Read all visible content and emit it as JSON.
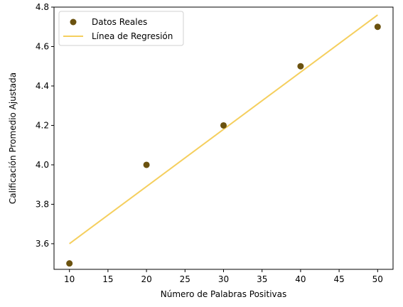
{
  "chart_data": {
    "type": "scatter",
    "title": "",
    "xlabel": "Número de Palabras Positivas",
    "ylabel": "Calificación Promedio Ajustada",
    "xlim": [
      8,
      52
    ],
    "ylim": [
      3.47,
      4.8
    ],
    "x_ticks": [
      10,
      15,
      20,
      25,
      30,
      35,
      40,
      45,
      50
    ],
    "x_tick_labels": [
      "10",
      "15",
      "20",
      "25",
      "30",
      "35",
      "40",
      "45",
      "50"
    ],
    "y_ticks": [
      3.6,
      3.8,
      4.0,
      4.2,
      4.4,
      4.6,
      4.8
    ],
    "y_tick_labels": [
      "3.6",
      "3.8",
      "4.0",
      "4.2",
      "4.4",
      "4.6",
      "4.8"
    ],
    "grid": false,
    "legend_position": "top-left",
    "series": [
      {
        "name": "Datos Reales",
        "kind": "scatter",
        "color": "#6b520f",
        "x": [
          10,
          20,
          30,
          40,
          50
        ],
        "y": [
          3.5,
          4.0,
          4.2,
          4.5,
          4.7
        ]
      },
      {
        "name": "Línea de Regresión",
        "kind": "line",
        "color": "#f5cf5e",
        "x": [
          10,
          50
        ],
        "y": [
          3.6,
          4.76
        ]
      }
    ]
  }
}
